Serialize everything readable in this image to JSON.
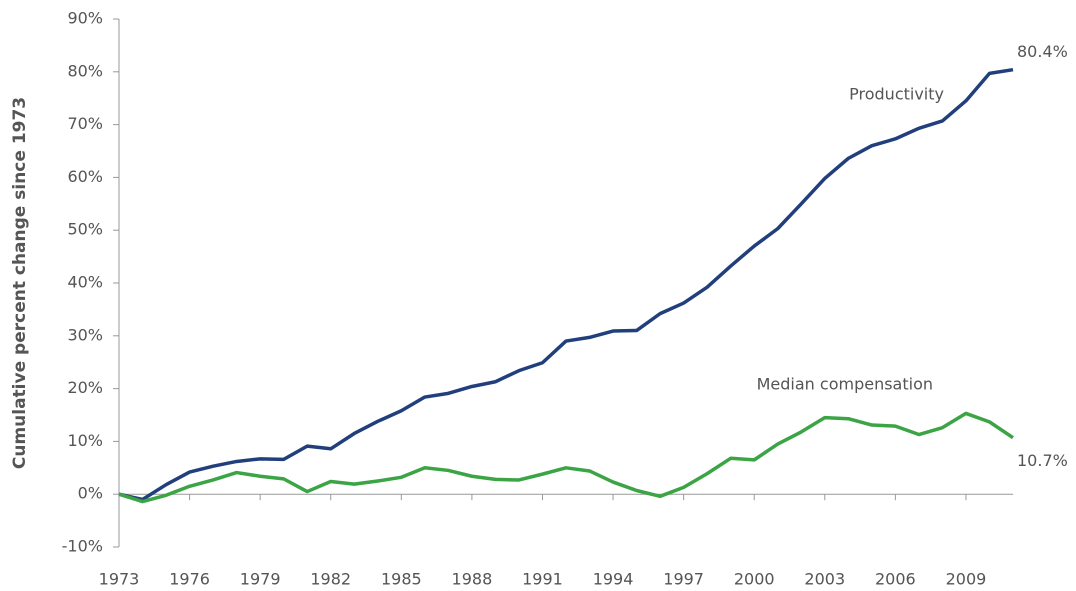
{
  "chart_data": {
    "type": "line",
    "y_label": "Cumulative percent change since 1973",
    "x": [
      1973,
      1974,
      1975,
      1976,
      1977,
      1978,
      1979,
      1980,
      1981,
      1982,
      1983,
      1984,
      1985,
      1986,
      1987,
      1988,
      1989,
      1990,
      1991,
      1992,
      1993,
      1994,
      1995,
      1996,
      1997,
      1998,
      1999,
      2000,
      2001,
      2002,
      2003,
      2004,
      2005,
      2006,
      2007,
      2008,
      2009,
      2010,
      2011
    ],
    "series": [
      {
        "name": "Productivity",
        "color": "#213f7c",
        "values": [
          0,
          -1,
          1.8,
          4.2,
          5.3,
          6.2,
          6.7,
          6.6,
          9.1,
          8.6,
          11.5,
          13.8,
          15.8,
          18.4,
          19.1,
          20.4,
          21.3,
          23.4,
          24.9,
          29.0,
          29.7,
          30.9,
          31.0,
          34.2,
          36.2,
          39.2,
          43.2,
          47.0,
          50.3,
          55.0,
          59.8,
          63.6,
          66.0,
          67.3,
          69.3,
          70.7,
          74.5,
          79.7,
          80.4
        ],
        "value_labels": [
          null,
          null,
          null,
          null,
          null,
          null,
          null,
          null,
          null,
          null,
          null,
          null,
          null,
          null,
          null,
          null,
          null,
          null,
          null,
          null,
          null,
          null,
          null,
          null,
          null,
          null,
          null,
          null,
          null,
          null,
          null,
          null,
          null,
          null,
          null,
          null,
          null,
          null,
          "80.4%"
        ]
      },
      {
        "name": "Median compensation",
        "color": "#3ba445",
        "values": [
          0,
          -1.4,
          -0.2,
          1.5,
          2.7,
          4.1,
          3.4,
          2.9,
          0.5,
          2.4,
          1.9,
          2.5,
          3.2,
          5.0,
          4.5,
          3.4,
          2.8,
          2.7,
          3.8,
          5.0,
          4.4,
          2.3,
          0.7,
          -0.4,
          1.3,
          3.9,
          6.8,
          6.5,
          9.5,
          11.8,
          14.5,
          14.3,
          13.1,
          12.9,
          11.3,
          12.6,
          15.3,
          13.7,
          10.7
        ],
        "value_labels": [
          null,
          null,
          null,
          null,
          null,
          null,
          null,
          null,
          null,
          null,
          null,
          null,
          null,
          null,
          null,
          null,
          null,
          null,
          null,
          null,
          null,
          null,
          null,
          null,
          null,
          null,
          null,
          null,
          null,
          null,
          null,
          null,
          null,
          null,
          null,
          null,
          null,
          null,
          "10.7%"
        ]
      }
    ],
    "xlim": [
      1973,
      2011
    ],
    "xticks": [
      1973,
      1976,
      1979,
      1982,
      1985,
      1988,
      1991,
      1994,
      1997,
      2000,
      2003,
      2006,
      2009
    ],
    "ylim": [
      -10,
      90
    ],
    "yticks": [
      {
        "value": -10,
        "label": "-10%"
      },
      {
        "value": 0,
        "label": "0%"
      },
      {
        "value": 10,
        "label": "10%"
      },
      {
        "value": 20,
        "label": "20%"
      },
      {
        "value": 30,
        "label": "30%"
      },
      {
        "value": 40,
        "label": "40%"
      },
      {
        "value": 50,
        "label": "50%"
      },
      {
        "value": 60,
        "label": "60%"
      },
      {
        "value": 70,
        "label": "70%"
      },
      {
        "value": 80,
        "label": "80%"
      },
      {
        "value": 90,
        "label": "90%"
      }
    ],
    "grid": false
  }
}
